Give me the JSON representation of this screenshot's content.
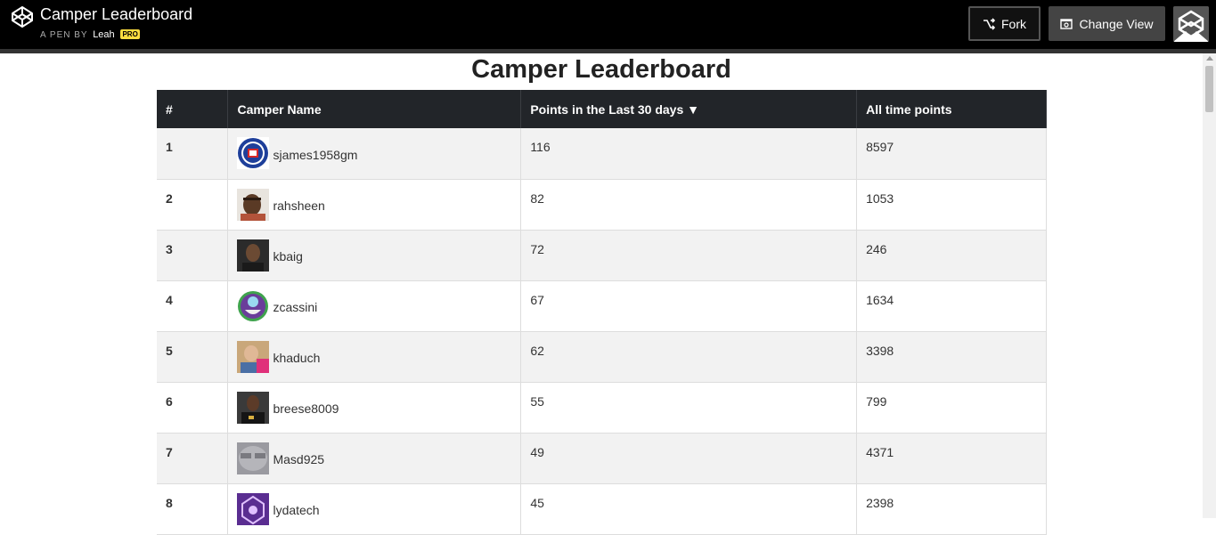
{
  "header": {
    "pen_title": "Camper Leaderboard",
    "pen_by": "A PEN BY",
    "author": "Leah",
    "pro_badge": "PRO",
    "fork_label": "Fork",
    "change_view_label": "Change View"
  },
  "main": {
    "title": "Camper Leaderboard",
    "columns": {
      "rank": "#",
      "name": "Camper Name",
      "recent": "Points in the Last 30 days ▼",
      "alltime": "All time points"
    },
    "rows": [
      {
        "rank": "1",
        "name": "sjames1958gm",
        "recent": "116",
        "alltime": "8597"
      },
      {
        "rank": "2",
        "name": "rahsheen",
        "recent": "82",
        "alltime": "1053"
      },
      {
        "rank": "3",
        "name": "kbaig",
        "recent": "72",
        "alltime": "246"
      },
      {
        "rank": "4",
        "name": "zcassini",
        "recent": "67",
        "alltime": "1634"
      },
      {
        "rank": "5",
        "name": "khaduch",
        "recent": "62",
        "alltime": "3398"
      },
      {
        "rank": "6",
        "name": "breese8009",
        "recent": "55",
        "alltime": "799"
      },
      {
        "rank": "7",
        "name": "Masd925",
        "recent": "49",
        "alltime": "4371"
      },
      {
        "rank": "8",
        "name": "lydatech",
        "recent": "45",
        "alltime": "2398"
      }
    ]
  },
  "icons": {
    "logo": "codepen-logo-icon",
    "fork": "fork-icon",
    "change_view": "change-view-icon"
  }
}
